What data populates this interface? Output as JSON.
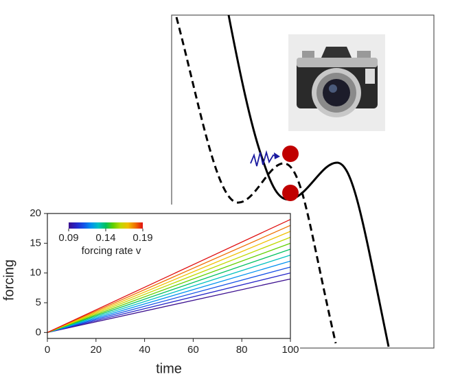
{
  "chart_data": {
    "type": "line",
    "xlabel": "time",
    "ylabel": "forcing",
    "x": [
      0,
      100
    ],
    "xlim": [
      0,
      100
    ],
    "xticks": [
      0,
      20,
      40,
      60,
      80,
      100
    ],
    "ylim": [
      -1,
      20
    ],
    "yticks": [
      0,
      5,
      10,
      15,
      20
    ],
    "colorbar": {
      "label": "forcing rate v",
      "lim": [
        0.09,
        0.19
      ],
      "ticks": [
        0.09,
        0.14,
        0.19
      ]
    },
    "series": [
      {
        "color": "#3b0f8f",
        "values": [
          0,
          9
        ]
      },
      {
        "color": "#2626c8",
        "values": [
          0,
          10
        ]
      },
      {
        "color": "#1450e6",
        "values": [
          0,
          11
        ]
      },
      {
        "color": "#0090f0",
        "values": [
          0,
          12
        ]
      },
      {
        "color": "#00c0c0",
        "values": [
          0,
          13
        ]
      },
      {
        "color": "#00c060",
        "values": [
          0,
          14
        ]
      },
      {
        "color": "#60d000",
        "values": [
          0,
          15
        ]
      },
      {
        "color": "#c0d800",
        "values": [
          0,
          16
        ]
      },
      {
        "color": "#f0c000",
        "values": [
          0,
          17
        ]
      },
      {
        "color": "#f07000",
        "values": [
          0,
          18
        ]
      },
      {
        "color": "#e01010",
        "values": [
          0,
          19
        ]
      }
    ]
  }
}
